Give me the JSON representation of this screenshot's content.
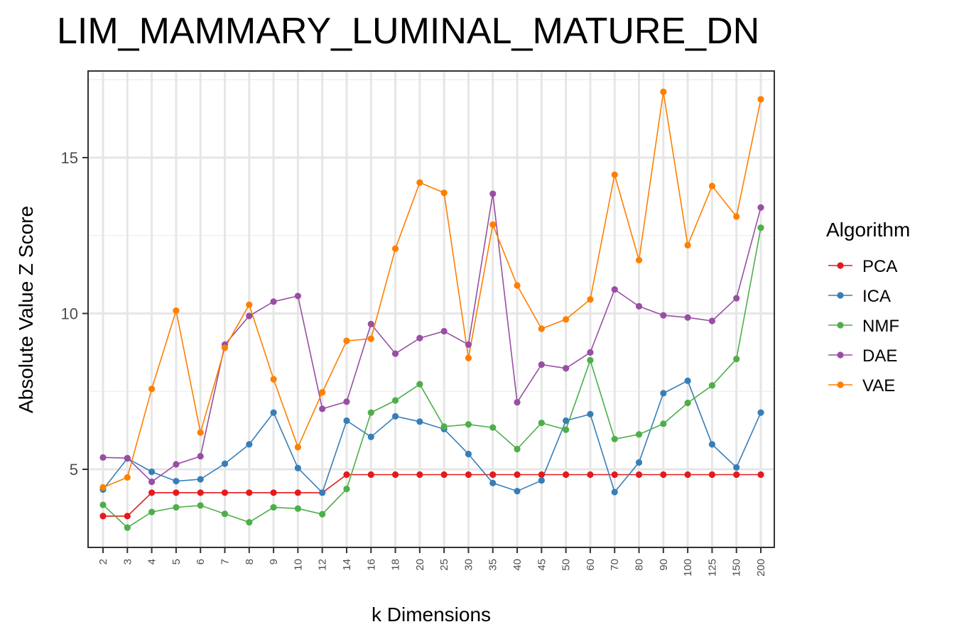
{
  "chart_data": {
    "type": "line",
    "title": "LIM_MAMMARY_LUMINAL_MATURE_DN",
    "xlabel": "k Dimensions",
    "ylabel": "Absolute Value Z Score",
    "categories": [
      "2",
      "3",
      "4",
      "5",
      "6",
      "7",
      "8",
      "9",
      "10",
      "12",
      "14",
      "16",
      "18",
      "20",
      "25",
      "30",
      "35",
      "40",
      "45",
      "50",
      "60",
      "70",
      "80",
      "90",
      "100",
      "125",
      "150",
      "200"
    ],
    "y_ticks": [
      5,
      10,
      15
    ],
    "ylim": [
      2.5,
      17.4
    ],
    "grid": true,
    "legend_title": "Algorithm",
    "legend_position": "right",
    "series": [
      {
        "name": "PCA",
        "color": "#E41A1C",
        "values": [
          3.5,
          3.5,
          4.25,
          4.25,
          4.25,
          4.25,
          4.25,
          4.25,
          4.25,
          4.25,
          4.83,
          4.83,
          4.83,
          4.83,
          4.83,
          4.83,
          4.83,
          4.83,
          4.83,
          4.83,
          4.83,
          4.83,
          4.83,
          4.83,
          4.83,
          4.83,
          4.83,
          4.83
        ]
      },
      {
        "name": "ICA",
        "color": "#377EB8",
        "values": [
          4.35,
          5.35,
          4.92,
          4.62,
          4.68,
          5.18,
          5.8,
          6.82,
          5.04,
          4.25,
          6.56,
          6.04,
          6.7,
          6.53,
          6.29,
          5.49,
          4.56,
          4.3,
          4.64,
          6.56,
          6.77,
          4.27,
          5.22,
          7.44,
          7.84,
          5.8,
          5.06,
          6.82
        ]
      },
      {
        "name": "NMF",
        "color": "#4DAF4A",
        "values": [
          3.86,
          3.13,
          3.63,
          3.78,
          3.84,
          3.57,
          3.3,
          3.78,
          3.74,
          3.56,
          4.37,
          6.82,
          7.21,
          7.73,
          6.37,
          6.44,
          6.34,
          5.65,
          6.49,
          6.27,
          8.5,
          5.97,
          6.12,
          6.46,
          7.13,
          7.69,
          8.54,
          12.75
        ]
      },
      {
        "name": "DAE",
        "color": "#984EA3",
        "values": [
          5.38,
          5.36,
          4.6,
          5.16,
          5.42,
          9.0,
          9.92,
          10.38,
          10.56,
          6.94,
          7.17,
          9.66,
          8.71,
          9.21,
          9.43,
          9.0,
          13.84,
          7.15,
          8.36,
          8.24,
          8.75,
          10.77,
          10.23,
          9.94,
          9.87,
          9.76,
          10.49,
          13.4
        ]
      },
      {
        "name": "VAE",
        "color": "#FF7F00",
        "values": [
          4.42,
          4.74,
          7.58,
          10.09,
          6.18,
          8.9,
          10.28,
          7.89,
          5.71,
          7.47,
          9.12,
          9.19,
          12.08,
          14.2,
          13.87,
          8.57,
          12.85,
          10.9,
          9.51,
          9.81,
          10.45,
          14.45,
          11.71,
          17.11,
          12.19,
          14.09,
          13.11,
          16.87
        ]
      }
    ]
  }
}
